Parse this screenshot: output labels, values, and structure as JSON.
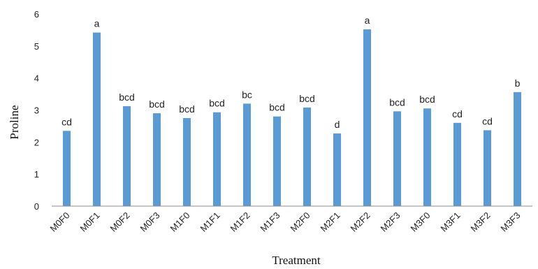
{
  "chart_data": {
    "type": "bar",
    "xlabel": "Treatment",
    "ylabel": "Proline",
    "ylim": [
      0,
      6
    ],
    "yticks": [
      "0",
      "1",
      "2",
      "3",
      "4",
      "5",
      "6"
    ],
    "grid": false,
    "legend": "none",
    "bar_color": "#5b9bd5",
    "categories": [
      "M0F0",
      "M0F1",
      "M0F2",
      "M0F3",
      "M1F0",
      "M1F1",
      "M1F2",
      "M1F3",
      "M2F0",
      "M2F1",
      "M2F2",
      "M2F3",
      "M3F0",
      "M3F1",
      "M3F2",
      "M3F3"
    ],
    "values": [
      2.35,
      5.42,
      3.12,
      2.9,
      2.75,
      2.93,
      3.2,
      2.8,
      3.08,
      2.27,
      5.52,
      2.96,
      3.05,
      2.6,
      2.37,
      3.56
    ],
    "labels": [
      "cd",
      "a",
      "bcd",
      "bcd",
      "bcd",
      "bcd",
      "bc",
      "bcd",
      "bcd",
      "d",
      "a",
      "bcd",
      "bcd",
      "cd",
      "cd",
      "b"
    ]
  }
}
